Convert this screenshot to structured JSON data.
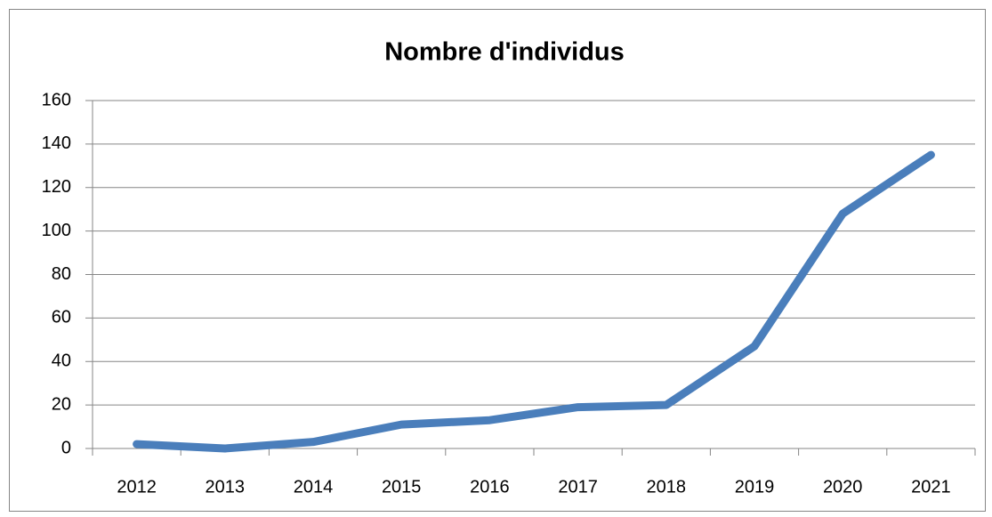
{
  "chart_data": {
    "type": "line",
    "title": "Nombre d'individus",
    "categories": [
      "2012",
      "2013",
      "2014",
      "2015",
      "2016",
      "2017",
      "2018",
      "2019",
      "2020",
      "2021"
    ],
    "values": [
      2,
      0,
      3,
      11,
      13,
      19,
      20,
      47,
      108,
      135
    ],
    "color": "#4a7ebb",
    "ylim": [
      0,
      160
    ],
    "yticks": [
      0,
      20,
      40,
      60,
      80,
      100,
      120,
      140,
      160
    ],
    "grid": true
  }
}
